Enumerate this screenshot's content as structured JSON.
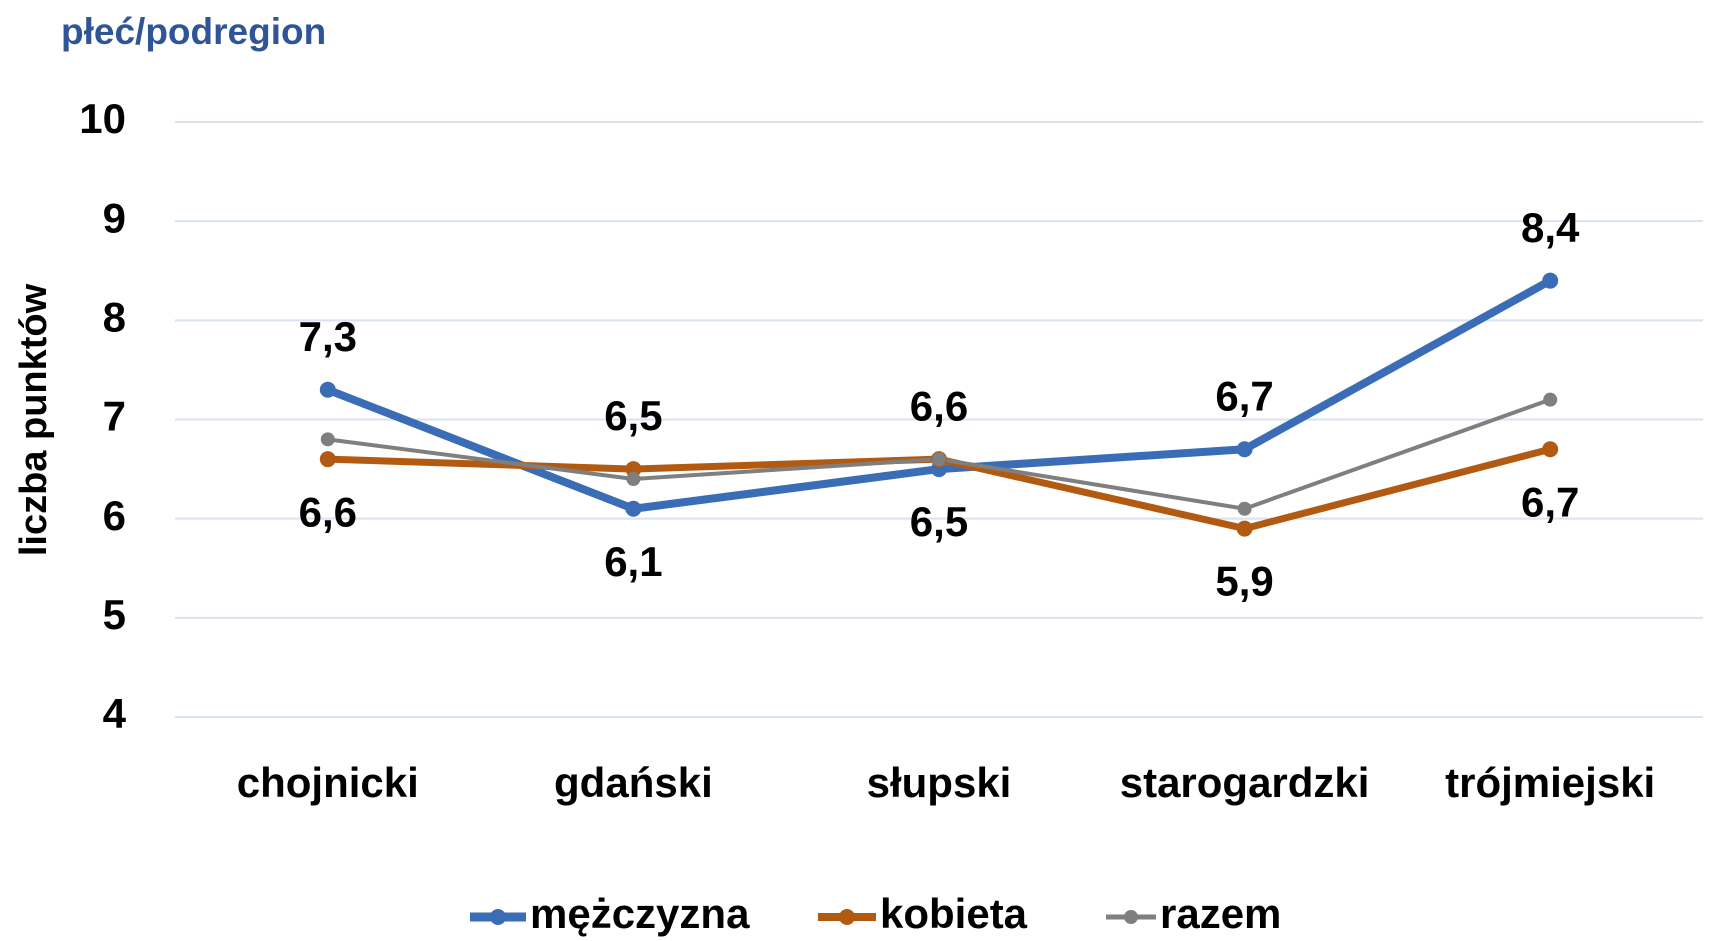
{
  "chart_data": {
    "type": "line",
    "title": "płeć/podregion",
    "y_label": "liczba punktów",
    "categories": [
      "chojnicki",
      "gdański",
      "słupski",
      "starogardzki",
      "trójmiejski"
    ],
    "series": [
      {
        "name": "mężczyzna",
        "color": "#3a6db5",
        "values": [
          7.3,
          6.1,
          6.5,
          6.7,
          8.4
        ],
        "value_labels": [
          "7,3",
          "6,1",
          "6,5",
          "6,7",
          "8,4"
        ]
      },
      {
        "name": "kobieta",
        "color": "#b35a12",
        "values": [
          6.6,
          6.5,
          6.6,
          5.9,
          6.7
        ],
        "value_labels": [
          "6,6",
          "6,5",
          "6,6",
          "5,9",
          "6,7"
        ]
      },
      {
        "name": "razem",
        "color": "#7f7f7f",
        "values": [
          6.8,
          6.4,
          6.6,
          6.1,
          7.2
        ]
      }
    ],
    "ylim": [
      4,
      10
    ],
    "yticks": [
      4,
      5,
      6,
      7,
      8,
      9,
      10
    ],
    "grid": true,
    "legend": "bottom"
  }
}
